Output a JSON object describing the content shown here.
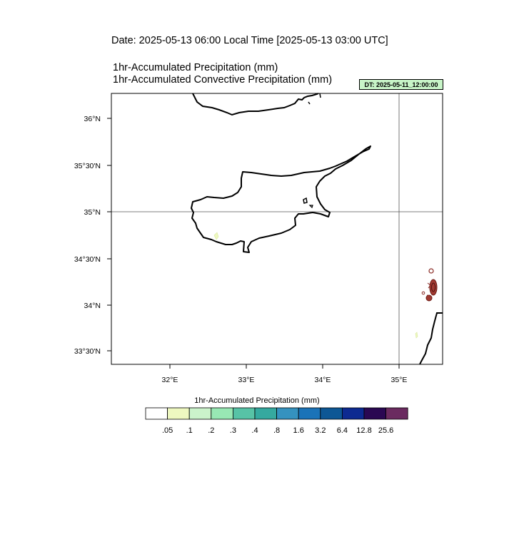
{
  "header": {
    "date_line": "Date: 2025-05-13  06:00 Local Time [2025-05-13  03:00 UTC]",
    "title_1": "1hr-Accumulated Precipitation   (mm)",
    "title_2": "1hr-Accumulated Convective Precipitation   (mm)",
    "dt_badge": "DT: 2025-05-11_12:00:00"
  },
  "map": {
    "lat_labels": [
      "36°N",
      "35°30'N",
      "35°N",
      "34°30'N",
      "34°N",
      "33°30'N"
    ],
    "lon_labels": [
      "32°E",
      "33°E",
      "34°E",
      "35°E"
    ],
    "gridlines": {
      "lat": "35°N",
      "lon": "35°E"
    }
  },
  "colorbar": {
    "title": "1hr-Accumulated Precipitation  (mm)",
    "colors": [
      "#ffffff",
      "#eef8c0",
      "#cbf3cb",
      "#98e8b4",
      "#57c3a6",
      "#35a99f",
      "#3592bf",
      "#1a73b8",
      "#0d5795",
      "#0d2a91",
      "#2a0852",
      "#6b2b60"
    ],
    "labels": [
      ".05",
      ".1",
      ".2",
      ".3",
      ".4",
      ".8",
      "1.6",
      "3.2",
      "6.4",
      "12.8",
      "25.6"
    ]
  }
}
